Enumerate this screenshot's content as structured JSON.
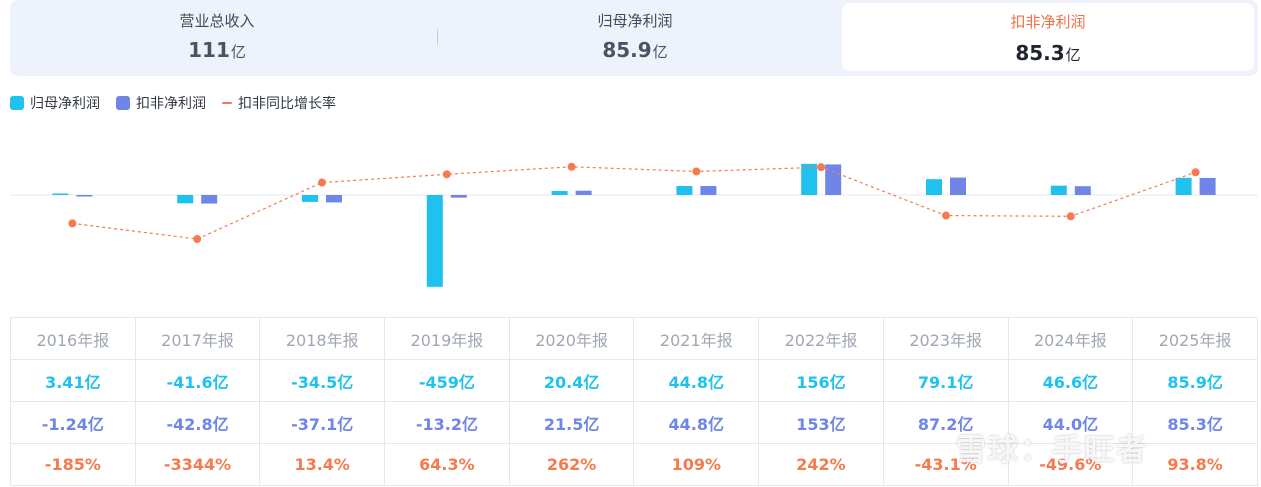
{
  "tabs": [
    {
      "label": "营业总收入",
      "value": "111",
      "unit": "亿",
      "active": false
    },
    {
      "label": "归母净利润",
      "value": "85.9",
      "unit": "亿",
      "active": false
    },
    {
      "label": "扣非净利润",
      "value": "85.3",
      "unit": "亿",
      "active": true
    }
  ],
  "legend": [
    {
      "label": "归母净利润",
      "color": "#1fc2ef",
      "kind": "bar"
    },
    {
      "label": "扣非净利润",
      "color": "#6f86e8",
      "kind": "bar"
    },
    {
      "label": "扣非同比增长率",
      "color": "#f47b50",
      "kind": "line"
    }
  ],
  "chart_data": {
    "type": "bar",
    "categories": [
      "2016年报",
      "2017年报",
      "2018年报",
      "2019年报",
      "2020年报",
      "2021年报",
      "2022年报",
      "2023年报",
      "2024年报",
      "2025年报"
    ],
    "series": [
      {
        "name": "归母净利润",
        "kind": "bar",
        "unit": "亿",
        "color": "#1fc2ef",
        "values": [
          3.41,
          -41.6,
          -34.5,
          -459,
          20.4,
          44.8,
          156,
          79.1,
          46.6,
          85.9
        ]
      },
      {
        "name": "扣非净利润",
        "kind": "bar",
        "unit": "亿",
        "color": "#6f86e8",
        "values": [
          -1.24,
          -42.8,
          -37.1,
          -13.2,
          21.5,
          44.8,
          153,
          87.2,
          44.0,
          85.3
        ]
      },
      {
        "name": "扣非同比增长率",
        "kind": "line",
        "unit": "%",
        "color": "#f47b50",
        "values": [
          -185,
          -3344,
          13.4,
          64.3,
          262,
          109,
          242,
          -43.1,
          -49.6,
          93.8
        ]
      }
    ]
  },
  "table": {
    "header": [
      "2016年报",
      "2017年报",
      "2018年报",
      "2019年报",
      "2020年报",
      "2021年报",
      "2022年报",
      "2023年报",
      "2024年报",
      "2025年报"
    ],
    "rows": [
      [
        "3.41亿",
        "-41.6亿",
        "-34.5亿",
        "-459亿",
        "20.4亿",
        "44.8亿",
        "156亿",
        "79.1亿",
        "46.6亿",
        "85.9亿"
      ],
      [
        "-1.24亿",
        "-42.8亿",
        "-37.1亿",
        "-13.2亿",
        "21.5亿",
        "44.8亿",
        "153亿",
        "87.2亿",
        "44.0亿",
        "85.3亿"
      ],
      [
        "-185%",
        "-3344%",
        "13.4%",
        "64.3%",
        "262%",
        "109%",
        "242%",
        "-43.1%",
        "-49.6%",
        "93.8%"
      ]
    ]
  },
  "watermark": "雪球：手旺者"
}
